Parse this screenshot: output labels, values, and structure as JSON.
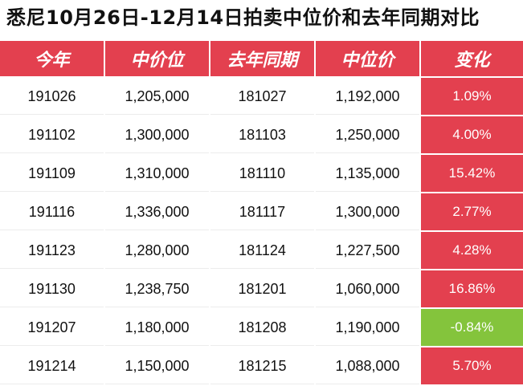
{
  "title": "悉尼10月26日-12月14日拍卖中位价和去年同期对比",
  "columns": [
    "今年",
    "中价位",
    "去年同期",
    "中位价",
    "变化"
  ],
  "rows": [
    {
      "this_year": "191026",
      "median": "1,205,000",
      "last_year": "181027",
      "last_median": "1,192,000",
      "change": "1.09%"
    },
    {
      "this_year": "191102",
      "median": "1,300,000",
      "last_year": "181103",
      "last_median": "1,250,000",
      "change": "4.00%"
    },
    {
      "this_year": "191109",
      "median": "1,310,000",
      "last_year": "181110",
      "last_median": "1,135,000",
      "change": "15.42%"
    },
    {
      "this_year": "191116",
      "median": "1,336,000",
      "last_year": "181117",
      "last_median": "1,300,000",
      "change": "2.77%"
    },
    {
      "this_year": "191123",
      "median": "1,280,000",
      "last_year": "181124",
      "last_median": "1,227,500",
      "change": "4.28%"
    },
    {
      "this_year": "191130",
      "median": "1,238,750",
      "last_year": "181201",
      "last_median": "1,060,000",
      "change": "16.86%"
    },
    {
      "this_year": "191207",
      "median": "1,180,000",
      "last_year": "181208",
      "last_median": "1,190,000",
      "change": "-0.84%"
    },
    {
      "this_year": "191214",
      "median": "1,150,000",
      "last_year": "181215",
      "last_median": "1,088,000",
      "change": "5.70%"
    }
  ],
  "colors": {
    "header_bg": "#e3404f",
    "positive_change_bg": "#e3404f",
    "negative_change_bg": "#84c43c"
  }
}
